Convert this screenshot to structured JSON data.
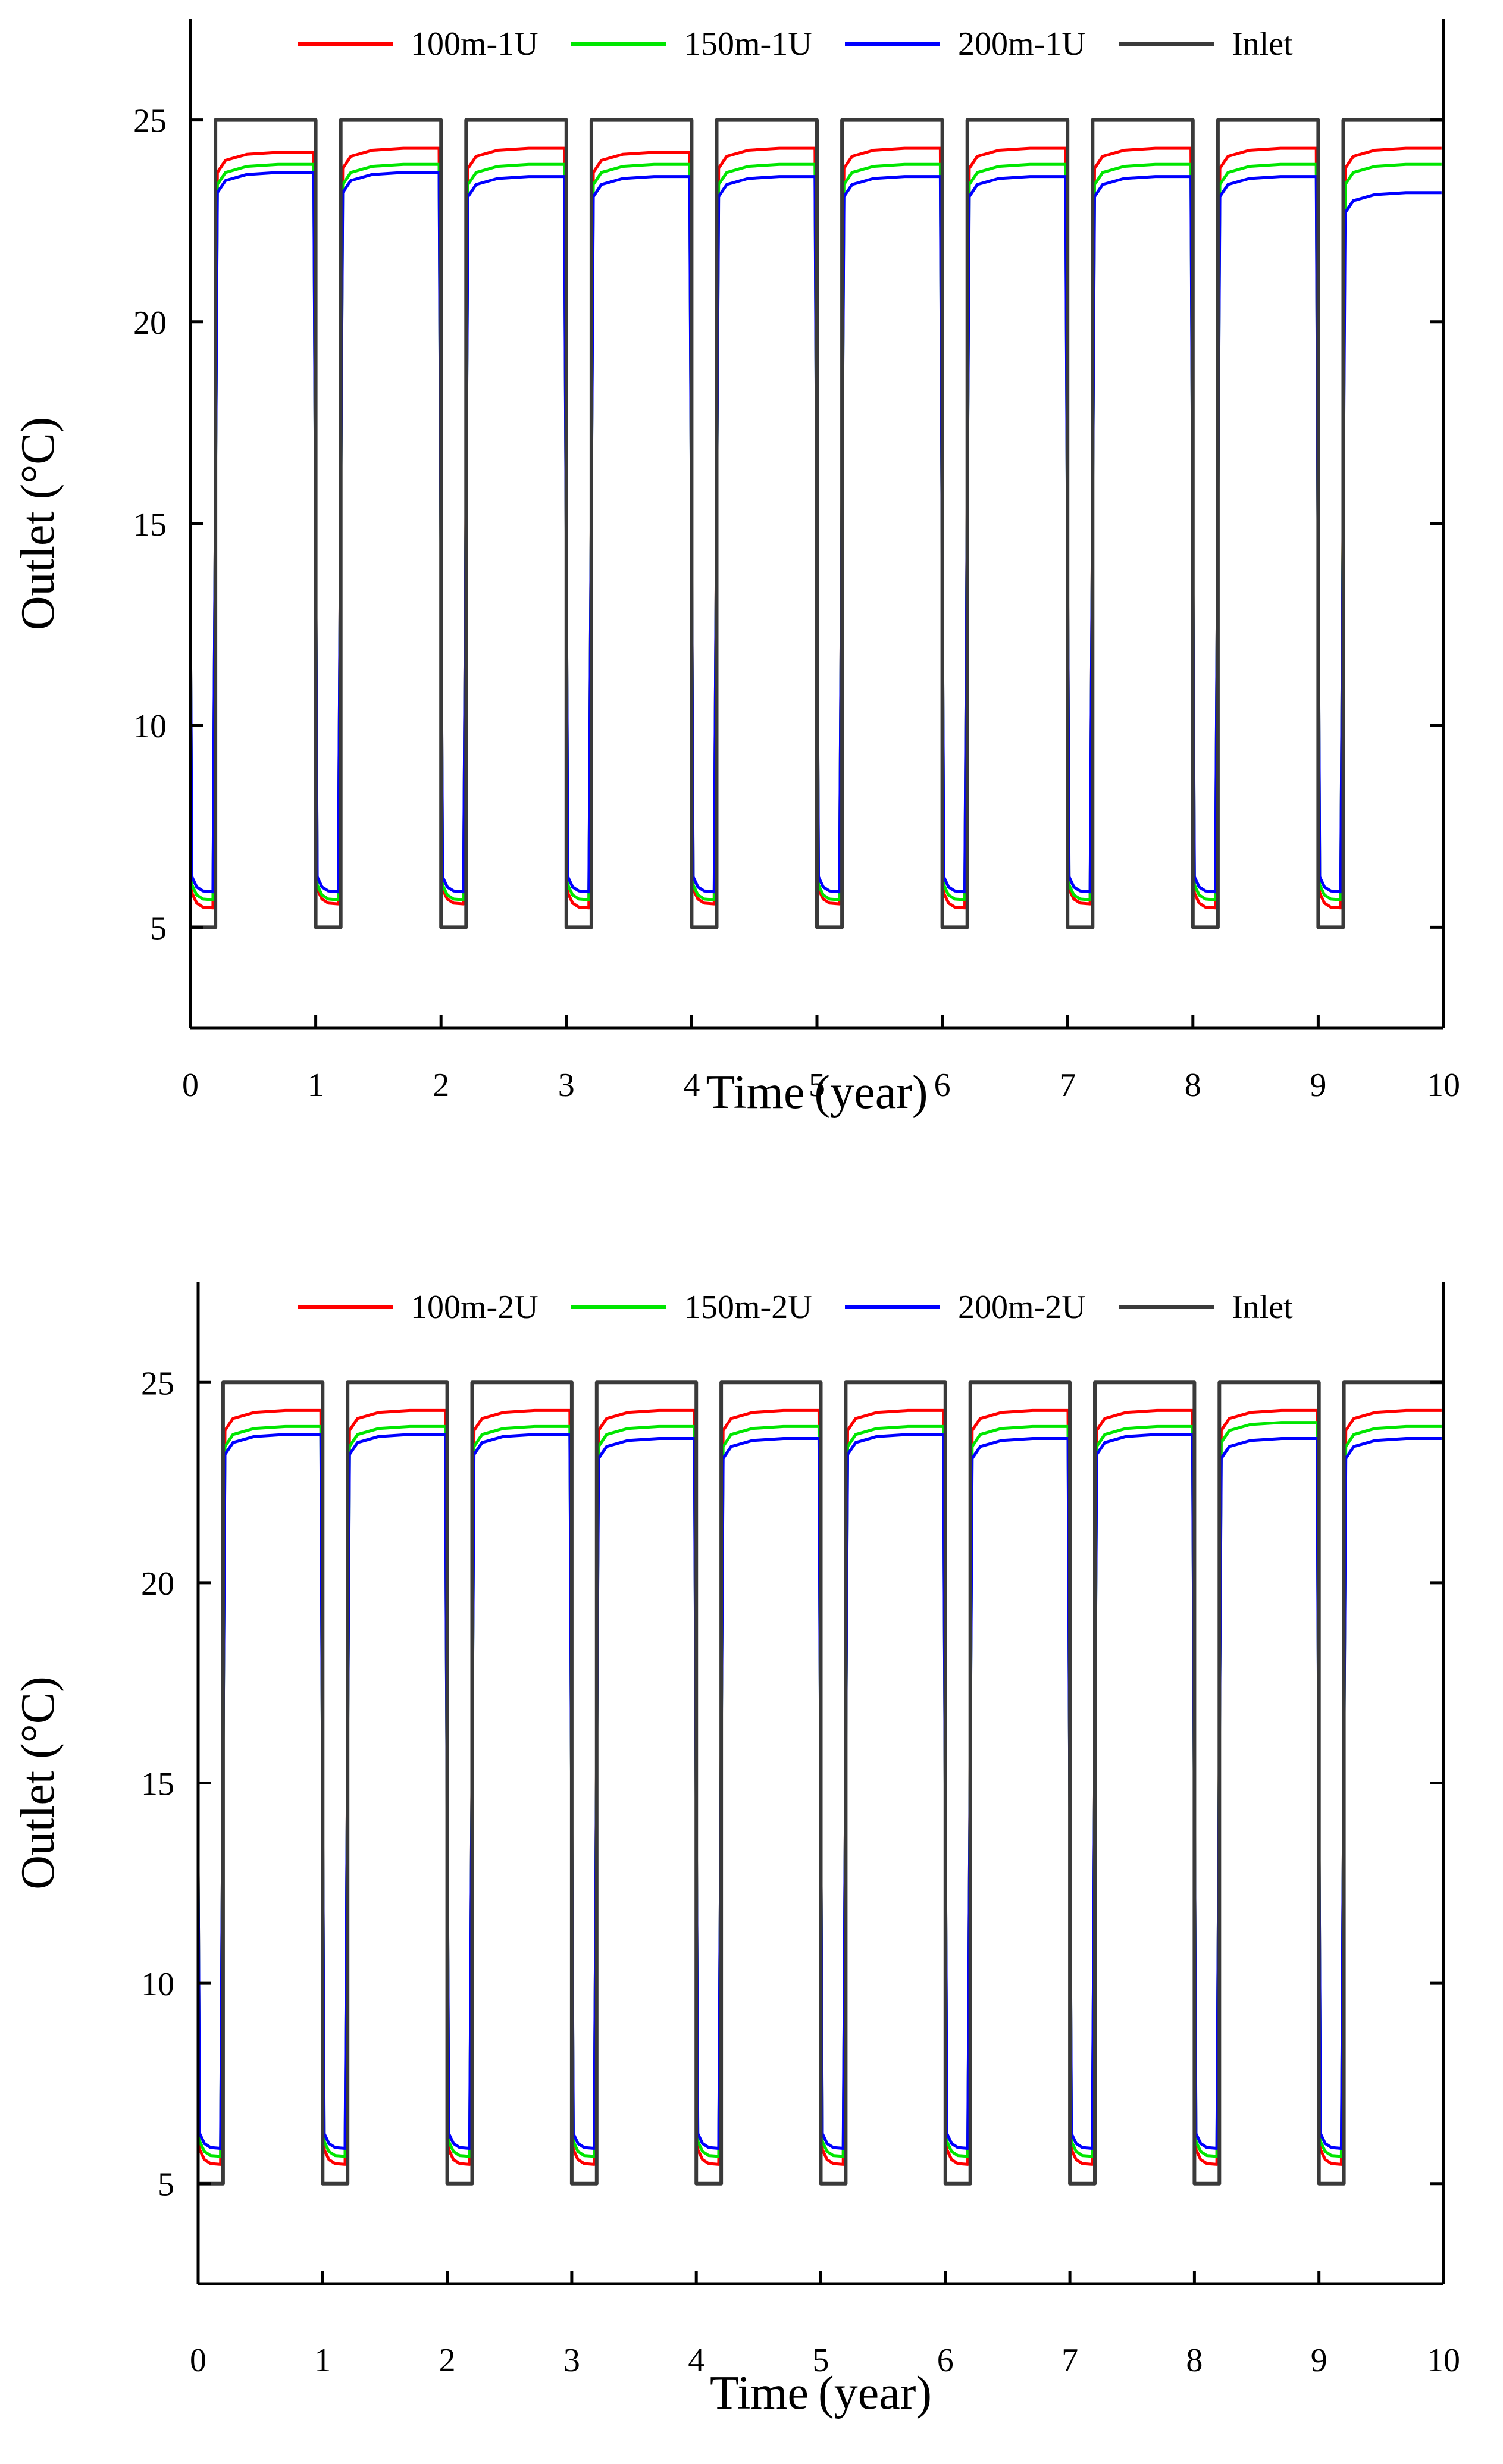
{
  "chart_data": [
    {
      "type": "line",
      "xlabel": "Time (year)",
      "ylabel": "Outlet (°C)",
      "xlim": [
        0,
        10
      ],
      "ylim": [
        2.5,
        27.5
      ],
      "xticks": [
        "0",
        "1",
        "2",
        "3",
        "4",
        "5",
        "6",
        "7",
        "8",
        "9",
        "10"
      ],
      "yticks": [
        "5",
        "10",
        "15",
        "20",
        "25"
      ],
      "legend_position": "top",
      "inlet": {
        "high": 25,
        "low": 5,
        "heating_fraction": 0.2
      },
      "series": [
        {
          "name": "100m-1U",
          "color": "#ff0000",
          "summer": [
            24.2,
            24.3,
            24.3,
            24.2,
            24.3,
            24.3,
            24.3,
            24.3,
            24.3,
            24.3
          ],
          "winter": [
            5.5,
            5.6,
            5.6,
            5.5,
            5.6,
            5.6,
            5.5,
            5.6,
            5.5,
            5.5
          ]
        },
        {
          "name": "150m-1U",
          "color": "#00e600",
          "summer": [
            23.9,
            23.9,
            23.9,
            23.9,
            23.9,
            23.9,
            23.9,
            23.9,
            23.9,
            23.9
          ],
          "winter": [
            5.7,
            5.7,
            5.7,
            5.7,
            5.7,
            5.7,
            5.7,
            5.7,
            5.7,
            5.7
          ]
        },
        {
          "name": "200m-1U",
          "color": "#0000ff",
          "summer": [
            23.7,
            23.7,
            23.6,
            23.6,
            23.6,
            23.6,
            23.6,
            23.6,
            23.6,
            23.2
          ],
          "winter": [
            5.9,
            5.9,
            5.9,
            5.9,
            5.9,
            5.9,
            5.9,
            5.9,
            5.9,
            5.9
          ]
        },
        {
          "name": "Inlet",
          "color": "#3a3a3a"
        }
      ]
    },
    {
      "type": "line",
      "xlabel": "Time (year)",
      "ylabel": "Outlet (°C)",
      "xlim": [
        0,
        10
      ],
      "ylim": [
        2.5,
        27.5
      ],
      "xticks": [
        "0",
        "1",
        "2",
        "3",
        "4",
        "5",
        "6",
        "7",
        "8",
        "9",
        "10"
      ],
      "yticks": [
        "5",
        "10",
        "15",
        "20",
        "25"
      ],
      "legend_position": "top",
      "inlet": {
        "high": 25,
        "low": 5,
        "heating_fraction": 0.2
      },
      "series": [
        {
          "name": "100m-2U",
          "color": "#ff0000",
          "summer": [
            24.3,
            24.3,
            24.3,
            24.3,
            24.3,
            24.3,
            24.3,
            24.3,
            24.3,
            24.3
          ],
          "winter": [
            5.5,
            5.5,
            5.5,
            5.5,
            5.5,
            5.5,
            5.5,
            5.5,
            5.5,
            5.5
          ]
        },
        {
          "name": "150m-2U",
          "color": "#00e600",
          "summer": [
            23.9,
            23.9,
            23.9,
            23.9,
            23.9,
            23.9,
            23.9,
            23.9,
            24.0,
            23.9
          ],
          "winter": [
            5.7,
            5.7,
            5.7,
            5.7,
            5.7,
            5.7,
            5.7,
            5.7,
            5.7,
            5.7
          ]
        },
        {
          "name": "200m-2U",
          "color": "#0000ff",
          "summer": [
            23.7,
            23.7,
            23.7,
            23.6,
            23.6,
            23.7,
            23.6,
            23.7,
            23.6,
            23.6
          ],
          "winter": [
            5.9,
            5.9,
            5.9,
            5.9,
            5.9,
            5.9,
            5.9,
            5.9,
            5.9,
            5.9
          ]
        },
        {
          "name": "Inlet",
          "color": "#3a3a3a"
        }
      ]
    }
  ]
}
